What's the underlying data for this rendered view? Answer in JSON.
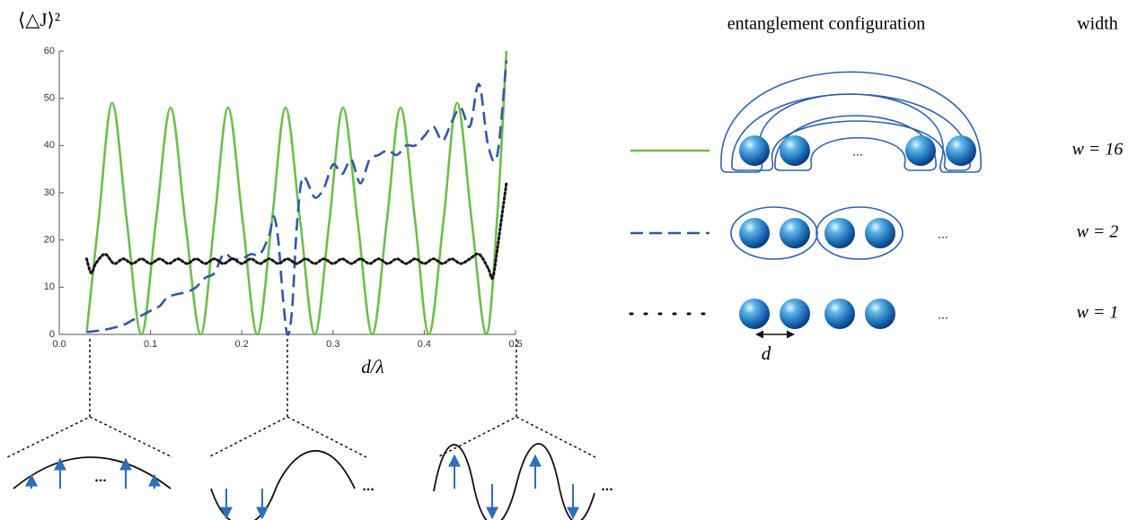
{
  "chart_data": {
    "type": "line",
    "y_label": "⟨△J⟩²",
    "x_label": "d/λ",
    "xlim": [
      0,
      0.5
    ],
    "ylim": [
      0,
      60
    ],
    "xticks": [
      {
        "value": 0,
        "label": "0.0"
      },
      0.1,
      0.2,
      0.3,
      0.4,
      0.5
    ],
    "yticks": [
      0,
      10,
      20,
      30,
      40,
      50,
      60
    ],
    "series": [
      {
        "name": "w = 16",
        "color": "#6cbf4a",
        "dash": "solid",
        "x": [
          0.03,
          0.043,
          0.058,
          0.074,
          0.09,
          0.106,
          0.122,
          0.138,
          0.155,
          0.17,
          0.185,
          0.201,
          0.217,
          0.233,
          0.248,
          0.264,
          0.28,
          0.296,
          0.311,
          0.327,
          0.343,
          0.359,
          0.374,
          0.39,
          0.405,
          0.421,
          0.436,
          0.452,
          0.468,
          0.48,
          0.49
        ],
        "values": [
          0.5,
          24,
          49,
          24,
          0,
          24,
          48,
          24,
          0,
          24,
          48,
          24,
          0,
          24,
          48,
          24,
          0,
          24,
          48,
          24,
          0,
          24,
          48,
          24,
          0,
          24,
          49,
          24,
          0,
          25,
          60
        ]
      },
      {
        "name": "w = 2",
        "color": "#3356a8",
        "dash": "dashed",
        "x": [
          0.03,
          0.05,
          0.07,
          0.08,
          0.1,
          0.11,
          0.12,
          0.14,
          0.15,
          0.16,
          0.17,
          0.18,
          0.19,
          0.2,
          0.21,
          0.22,
          0.23,
          0.235,
          0.24,
          0.245,
          0.25,
          0.255,
          0.26,
          0.265,
          0.27,
          0.28,
          0.29,
          0.3,
          0.31,
          0.32,
          0.33,
          0.34,
          0.35,
          0.36,
          0.37,
          0.38,
          0.39,
          0.4,
          0.41,
          0.42,
          0.43,
          0.44,
          0.45,
          0.46,
          0.47,
          0.48,
          0.49
        ],
        "values": [
          0.5,
          1,
          2,
          3,
          5,
          6,
          8,
          9,
          10,
          12,
          13,
          17,
          16,
          16,
          17,
          17,
          21,
          25,
          20,
          8,
          0,
          5,
          22,
          32,
          33,
          29,
          31,
          36,
          34,
          37,
          32,
          37,
          38,
          39,
          38,
          40,
          40,
          42,
          44,
          41,
          45,
          48,
          44,
          53,
          40,
          38,
          58
        ]
      },
      {
        "name": "w = 1",
        "color": "#111111",
        "dash": "dotted",
        "x": [
          0.03,
          0.035,
          0.04,
          0.05,
          0.06,
          0.07,
          0.08,
          0.09,
          0.1,
          0.11,
          0.12,
          0.13,
          0.14,
          0.15,
          0.16,
          0.17,
          0.18,
          0.19,
          0.2,
          0.21,
          0.22,
          0.23,
          0.24,
          0.25,
          0.26,
          0.27,
          0.28,
          0.29,
          0.3,
          0.31,
          0.32,
          0.33,
          0.34,
          0.35,
          0.36,
          0.37,
          0.38,
          0.39,
          0.4,
          0.41,
          0.42,
          0.43,
          0.44,
          0.45,
          0.46,
          0.47,
          0.475,
          0.48,
          0.485,
          0.49
        ],
        "values": [
          16,
          13,
          15,
          17,
          15,
          16,
          15,
          16,
          15,
          16,
          15,
          16,
          15,
          16,
          15,
          16,
          15,
          16,
          15,
          16,
          15,
          16,
          15,
          16,
          15,
          16,
          15,
          16,
          15,
          16,
          15,
          16,
          15,
          16,
          15,
          16,
          15,
          16,
          15,
          16,
          15,
          16,
          15,
          16,
          17,
          14,
          12,
          18,
          25,
          32
        ]
      }
    ],
    "legend_heading": "entanglement configuration",
    "width_heading": "width",
    "distance_label": "d",
    "ellipsis": "..."
  }
}
